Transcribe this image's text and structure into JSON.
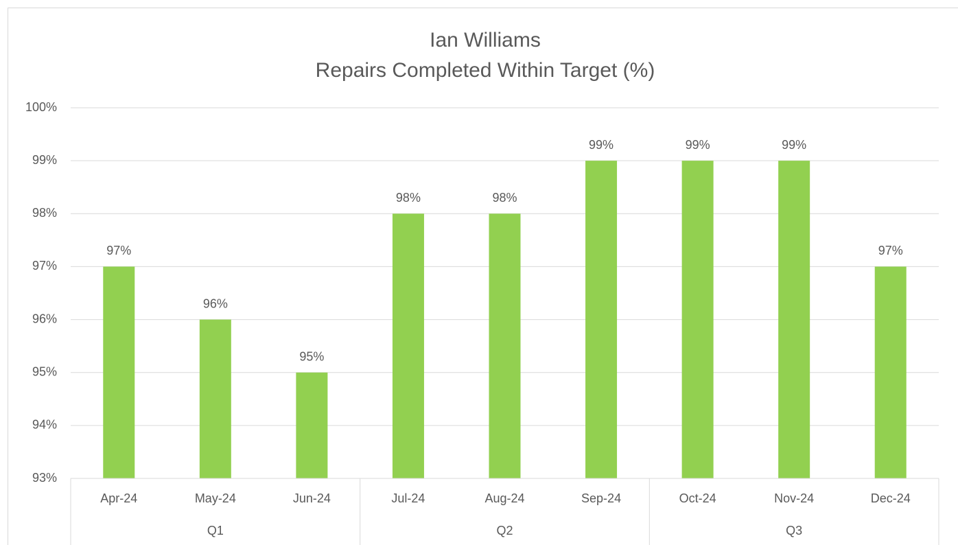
{
  "chart_data": {
    "type": "bar",
    "title": "Ian Williams",
    "subtitle": "Repairs Completed Within Target (%)",
    "groups": [
      {
        "name": "Q1",
        "categories": [
          "Apr-24",
          "May-24",
          "Jun-24"
        ]
      },
      {
        "name": "Q2",
        "categories": [
          "Jul-24",
          "Aug-24",
          "Sep-24"
        ]
      },
      {
        "name": "Q3",
        "categories": [
          "Oct-24",
          "Nov-24",
          "Dec-24"
        ]
      }
    ],
    "values": [
      97,
      96,
      95,
      98,
      98,
      99,
      99,
      99,
      97
    ],
    "value_labels": [
      "97%",
      "96%",
      "95%",
      "98%",
      "98%",
      "99%",
      "99%",
      "99%",
      "97%"
    ],
    "color": "#92d050",
    "ylim": [
      93,
      100
    ],
    "yticks": [
      {
        "value": 93,
        "label": "93%"
      },
      {
        "value": 94,
        "label": "94%"
      },
      {
        "value": 95,
        "label": "95%"
      },
      {
        "value": 96,
        "label": "96%"
      },
      {
        "value": 97,
        "label": "97%"
      },
      {
        "value": 98,
        "label": "98%"
      },
      {
        "value": 99,
        "label": "99%"
      },
      {
        "value": 100,
        "label": "100%"
      }
    ],
    "grid": true
  }
}
